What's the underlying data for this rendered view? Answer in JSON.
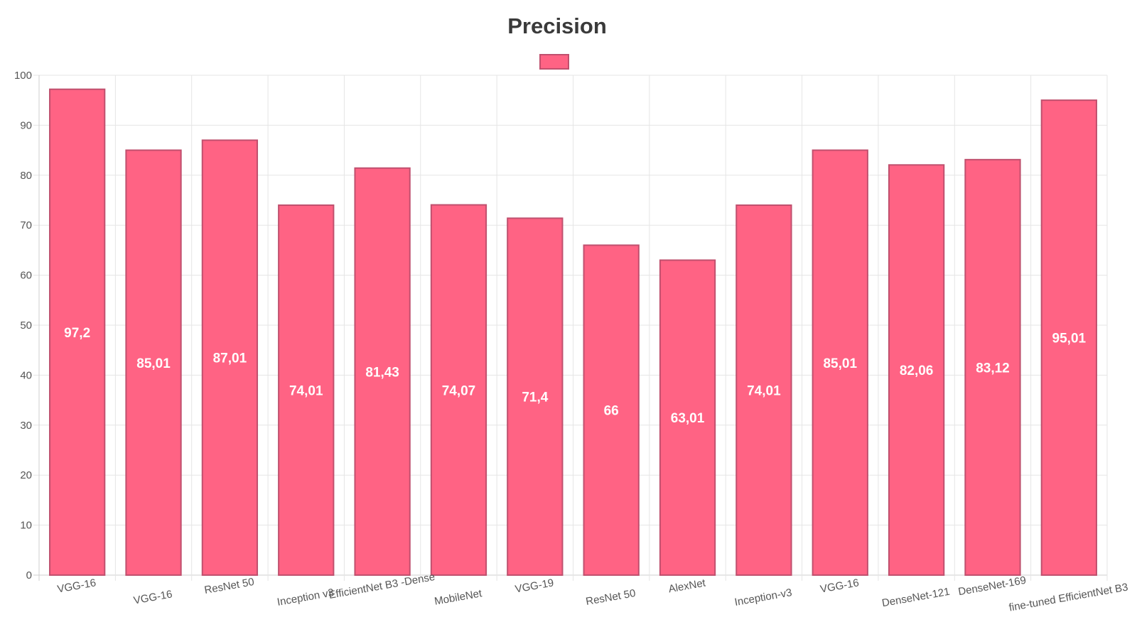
{
  "chart_data": {
    "type": "bar",
    "title": "Precision",
    "xlabel": "",
    "ylabel": "",
    "ylim": [
      0,
      100
    ],
    "yticks": [
      0,
      10,
      20,
      30,
      40,
      50,
      60,
      70,
      80,
      90,
      100
    ],
    "grid": true,
    "legend_position": "top-center",
    "categories": [
      "VGG-16",
      "VGG-16",
      "ResNet 50",
      "Inception v3",
      "EfficientNet B3 -Dense",
      "MobileNet",
      "VGG-19",
      "ResNet 50",
      "AlexNet",
      "Inception-v3",
      "VGG-16",
      "DenseNet-121",
      "DenseNet-169",
      "fine-tuned EfficientNet B3"
    ],
    "series": [
      {
        "values": [
          97.2,
          85.01,
          87.01,
          74.01,
          81.43,
          74.07,
          71.4,
          66,
          63.01,
          74.01,
          85.01,
          82.06,
          83.12,
          95.01
        ],
        "labels": [
          "97,2",
          "85,01",
          "87,01",
          "74,01",
          "81,43",
          "74,07",
          "71,4",
          "66",
          "63,01",
          "74,01",
          "85,01",
          "82,06",
          "83,12",
          "95,01"
        ],
        "color": "#ff6384",
        "border_color": "#c0506e"
      }
    ]
  }
}
